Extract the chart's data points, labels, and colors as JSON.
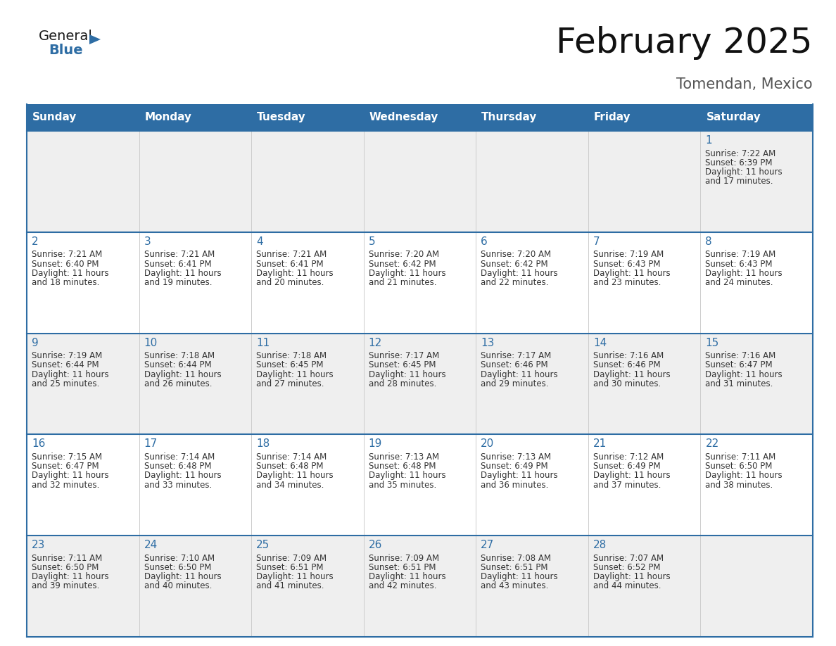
{
  "title": "February 2025",
  "subtitle": "Tomendan, Mexico",
  "header_color": "#2E6DA4",
  "header_text_color": "#FFFFFF",
  "row_colors": [
    "#EFEFEF",
    "#FFFFFF"
  ],
  "border_color": "#2E6DA4",
  "text_color": "#333333",
  "day_number_color": "#2E6DA4",
  "weekdays": [
    "Sunday",
    "Monday",
    "Tuesday",
    "Wednesday",
    "Thursday",
    "Friday",
    "Saturday"
  ],
  "calendar_data": [
    [
      null,
      null,
      null,
      null,
      null,
      null,
      {
        "day": 1,
        "sunrise": "7:22 AM",
        "sunset": "6:39 PM",
        "daylight": "11 hours and 17 minutes."
      }
    ],
    [
      {
        "day": 2,
        "sunrise": "7:21 AM",
        "sunset": "6:40 PM",
        "daylight": "11 hours and 18 minutes."
      },
      {
        "day": 3,
        "sunrise": "7:21 AM",
        "sunset": "6:41 PM",
        "daylight": "11 hours and 19 minutes."
      },
      {
        "day": 4,
        "sunrise": "7:21 AM",
        "sunset": "6:41 PM",
        "daylight": "11 hours and 20 minutes."
      },
      {
        "day": 5,
        "sunrise": "7:20 AM",
        "sunset": "6:42 PM",
        "daylight": "11 hours and 21 minutes."
      },
      {
        "day": 6,
        "sunrise": "7:20 AM",
        "sunset": "6:42 PM",
        "daylight": "11 hours and 22 minutes."
      },
      {
        "day": 7,
        "sunrise": "7:19 AM",
        "sunset": "6:43 PM",
        "daylight": "11 hours and 23 minutes."
      },
      {
        "day": 8,
        "sunrise": "7:19 AM",
        "sunset": "6:43 PM",
        "daylight": "11 hours and 24 minutes."
      }
    ],
    [
      {
        "day": 9,
        "sunrise": "7:19 AM",
        "sunset": "6:44 PM",
        "daylight": "11 hours and 25 minutes."
      },
      {
        "day": 10,
        "sunrise": "7:18 AM",
        "sunset": "6:44 PM",
        "daylight": "11 hours and 26 minutes."
      },
      {
        "day": 11,
        "sunrise": "7:18 AM",
        "sunset": "6:45 PM",
        "daylight": "11 hours and 27 minutes."
      },
      {
        "day": 12,
        "sunrise": "7:17 AM",
        "sunset": "6:45 PM",
        "daylight": "11 hours and 28 minutes."
      },
      {
        "day": 13,
        "sunrise": "7:17 AM",
        "sunset": "6:46 PM",
        "daylight": "11 hours and 29 minutes."
      },
      {
        "day": 14,
        "sunrise": "7:16 AM",
        "sunset": "6:46 PM",
        "daylight": "11 hours and 30 minutes."
      },
      {
        "day": 15,
        "sunrise": "7:16 AM",
        "sunset": "6:47 PM",
        "daylight": "11 hours and 31 minutes."
      }
    ],
    [
      {
        "day": 16,
        "sunrise": "7:15 AM",
        "sunset": "6:47 PM",
        "daylight": "11 hours and 32 minutes."
      },
      {
        "day": 17,
        "sunrise": "7:14 AM",
        "sunset": "6:48 PM",
        "daylight": "11 hours and 33 minutes."
      },
      {
        "day": 18,
        "sunrise": "7:14 AM",
        "sunset": "6:48 PM",
        "daylight": "11 hours and 34 minutes."
      },
      {
        "day": 19,
        "sunrise": "7:13 AM",
        "sunset": "6:48 PM",
        "daylight": "11 hours and 35 minutes."
      },
      {
        "day": 20,
        "sunrise": "7:13 AM",
        "sunset": "6:49 PM",
        "daylight": "11 hours and 36 minutes."
      },
      {
        "day": 21,
        "sunrise": "7:12 AM",
        "sunset": "6:49 PM",
        "daylight": "11 hours and 37 minutes."
      },
      {
        "day": 22,
        "sunrise": "7:11 AM",
        "sunset": "6:50 PM",
        "daylight": "11 hours and 38 minutes."
      }
    ],
    [
      {
        "day": 23,
        "sunrise": "7:11 AM",
        "sunset": "6:50 PM",
        "daylight": "11 hours and 39 minutes."
      },
      {
        "day": 24,
        "sunrise": "7:10 AM",
        "sunset": "6:50 PM",
        "daylight": "11 hours and 40 minutes."
      },
      {
        "day": 25,
        "sunrise": "7:09 AM",
        "sunset": "6:51 PM",
        "daylight": "11 hours and 41 minutes."
      },
      {
        "day": 26,
        "sunrise": "7:09 AM",
        "sunset": "6:51 PM",
        "daylight": "11 hours and 42 minutes."
      },
      {
        "day": 27,
        "sunrise": "7:08 AM",
        "sunset": "6:51 PM",
        "daylight": "11 hours and 43 minutes."
      },
      {
        "day": 28,
        "sunrise": "7:07 AM",
        "sunset": "6:52 PM",
        "daylight": "11 hours and 44 minutes."
      },
      null
    ]
  ],
  "logo_text_general": "General",
  "logo_text_blue": "Blue",
  "logo_color_general": "#1a1a1a",
  "logo_color_blue": "#2E6DA4",
  "logo_triangle_color": "#2E6DA4",
  "title_fontsize": 36,
  "subtitle_fontsize": 15,
  "header_fontsize": 11,
  "day_number_fontsize": 11,
  "cell_text_fontsize": 8.5
}
